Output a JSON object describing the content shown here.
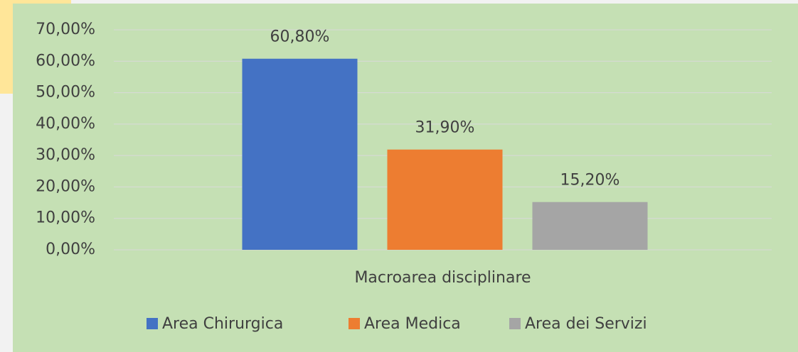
{
  "chart_data": {
    "type": "bar",
    "categories": [
      "Macroarea disciplinare"
    ],
    "series": [
      {
        "name": "Area Chirurgica",
        "color": "#4472c4",
        "values": [
          60.8
        ],
        "value_labels": [
          "60,80%"
        ]
      },
      {
        "name": "Area Medica",
        "color": "#ed7d31",
        "values": [
          31.9
        ],
        "value_labels": [
          "31,90%"
        ]
      },
      {
        "name": "Area dei Servizi",
        "color": "#a5a5a5",
        "values": [
          15.2
        ],
        "value_labels": [
          "15,20%"
        ]
      }
    ],
    "ylim": [
      0,
      70
    ],
    "yticks": [
      {
        "value": 0,
        "label": "0,00%"
      },
      {
        "value": 10,
        "label": "10,00%"
      },
      {
        "value": 20,
        "label": "20,00%"
      },
      {
        "value": 30,
        "label": "30,00%"
      },
      {
        "value": 40,
        "label": "40,00%"
      },
      {
        "value": 50,
        "label": "50,00%"
      },
      {
        "value": 60,
        "label": "60,00%"
      },
      {
        "value": 70,
        "label": "70,00%"
      }
    ],
    "grid": true,
    "legend": "bottom"
  }
}
